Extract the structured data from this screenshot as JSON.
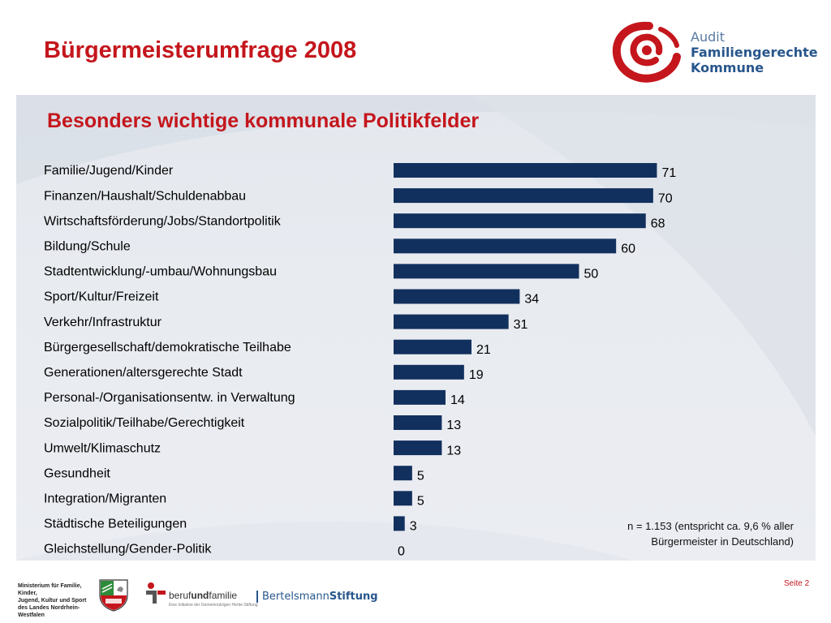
{
  "header": {
    "title": "Bürgermeisterumfrage 2008",
    "logo": {
      "line1": "Audit",
      "line2": "Familiengerechte",
      "line3": "Kommune",
      "icon": "swirl-logo-icon",
      "color": "#c4161c",
      "text_color": "#27568c"
    }
  },
  "panel": {
    "subtitle": "Besonders wichtige kommunale Politikfelder",
    "note_line1": "n = 1.153 (entspricht ca. 9,6 % aller",
    "note_line2": "Bürgermeister in Deutschland)"
  },
  "chart_data": {
    "type": "bar",
    "orientation": "horizontal",
    "categories": [
      "Familie/Jugend/Kinder",
      "Finanzen/Haushalt/Schuldenabbau",
      "Wirtschaftsförderung/Jobs/Standortpolitik",
      "Bildung/Schule",
      "Stadtentwicklung/-umbau/Wohnungsbau",
      "Sport/Kultur/Freizeit",
      "Verkehr/Infrastruktur",
      "Bürgergesellschaft/demokratische Teilhabe",
      "Generationen/altersgerechte Stadt",
      "Personal-/Organisationsentw. in Verwaltung",
      "Sozialpolitik/Teilhabe/Gerechtigkeit",
      "Umwelt/Klimaschutz",
      "Gesundheit",
      "Integration/Migranten",
      "Städtische Beteiligungen",
      "Gleichstellung/Gender-Politik"
    ],
    "values": [
      71,
      70,
      68,
      60,
      50,
      34,
      31,
      21,
      19,
      14,
      13,
      13,
      5,
      5,
      3,
      0
    ],
    "bar_color": "#12305e",
    "data_labels": true,
    "grid": false
  },
  "footer": {
    "ministry_line1": "Ministerium für Familie, Kinder,",
    "ministry_line2": "Jugend, Kultur und Sport",
    "ministry_line3": "des Landes Nordrhein-Westfalen",
    "berufundfamilie_pre": "beruf",
    "berufundfamilie_bold": "und",
    "berufundfamilie_post": "familie",
    "berufundfamilie_sub": "Eine Initiative der Gemeinnützigen Hertie-Stiftung",
    "bertelsmann_pre": "Bertelsmann",
    "bertelsmann_post": "Stiftung",
    "page": "Seite 2"
  }
}
